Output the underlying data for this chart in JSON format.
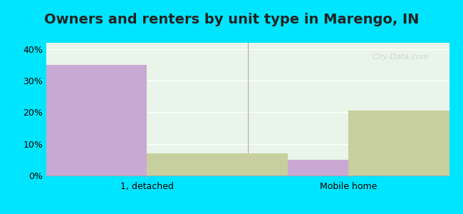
{
  "title": "Owners and renters by unit type in Marengo, IN",
  "categories": [
    "1, detached",
    "Mobile home"
  ],
  "owner_values": [
    35,
    5
  ],
  "renter_values": [
    7,
    20.5
  ],
  "owner_color": "#c9a8d4",
  "renter_color": "#c8cf9e",
  "ylim": [
    0,
    42
  ],
  "yticks": [
    0,
    10,
    20,
    30,
    40
  ],
  "ytick_labels": [
    "0%",
    "10%",
    "20%",
    "30%",
    "40%"
  ],
  "background_color": "#e8f5e8",
  "outer_background": "#00e5ff",
  "bar_width": 0.35,
  "title_fontsize": 14,
  "watermark": "City-Data.com"
}
